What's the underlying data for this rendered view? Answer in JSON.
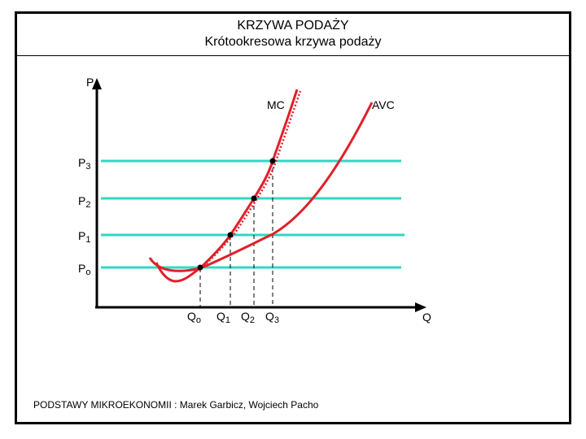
{
  "header": {
    "title": "KRZYWA  PODAŻY",
    "subtitle": "Krótookresowa  krzywa  podaży"
  },
  "axes": {
    "y_label": "P",
    "x_label": "Q"
  },
  "curves": {
    "mc_label": "MC",
    "avc_label": "AVC"
  },
  "price_levels": [
    {
      "base": "P",
      "sub": "3"
    },
    {
      "base": "P",
      "sub": "2"
    },
    {
      "base": "P",
      "sub": "1"
    },
    {
      "base": "P",
      "sub": "o"
    }
  ],
  "quantity_levels": [
    {
      "base": "Q",
      "sub": "o"
    },
    {
      "base": "Q",
      "sub": "1"
    },
    {
      "base": "Q",
      "sub": "2"
    },
    {
      "base": "Q",
      "sub": "3"
    }
  ],
  "footer": {
    "text": "PODSTAWY  MIKROEKONOMII : Marek  Garbicz, Wojciech  Pacho"
  },
  "colors": {
    "curve": "#e0202a",
    "price_line": "#2ed9c3",
    "axis": "#000000"
  }
}
